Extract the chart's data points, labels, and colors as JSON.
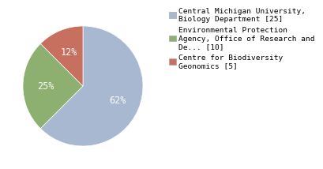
{
  "slices": [
    25,
    10,
    5
  ],
  "labels": [
    "Central Michigan University,\nBiology Department [25]",
    "Environmental Protection\nAgency, Office of Research and\nDe... [10]",
    "Centre for Biodiversity\nGeonomics [5]"
  ],
  "colors": [
    "#a8b8d0",
    "#8db070",
    "#c87060"
  ],
  "pct_labels": [
    "62%",
    "25%",
    "12%"
  ],
  "startangle": 90,
  "legend_fontsize": 6.8,
  "pct_fontsize": 8.5,
  "background_color": "#ffffff"
}
